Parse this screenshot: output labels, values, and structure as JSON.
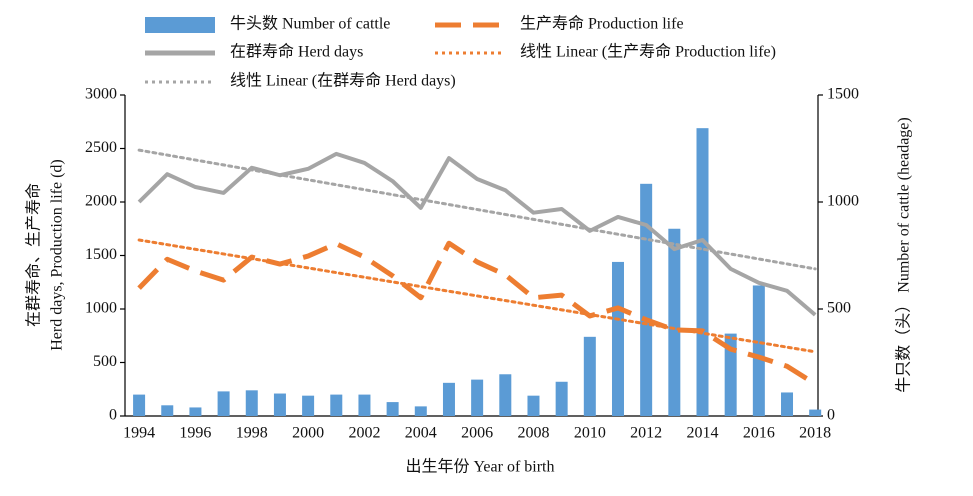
{
  "chart_data": {
    "type": "combo",
    "x_label": "出生年份 Year of birth",
    "y_label": [
      "在群寿命、生产寿命",
      "Herd days, Production life (d)"
    ],
    "y2_label": "牛只数（头） Number of cattle (headage)",
    "x": [
      1994,
      1995,
      1996,
      1997,
      1998,
      1999,
      2000,
      2001,
      2002,
      2003,
      2004,
      2005,
      2006,
      2007,
      2008,
      2009,
      2010,
      2011,
      2012,
      2013,
      2014,
      2015,
      2016,
      2017,
      2018
    ],
    "xlim": [
      1993.5,
      2018.1
    ],
    "xticks": [
      1994,
      1996,
      1998,
      2000,
      2002,
      2004,
      2006,
      2008,
      2010,
      2012,
      2014,
      2016,
      2018
    ],
    "ylim": [
      0,
      3000
    ],
    "yticks": [
      0,
      500,
      1000,
      1500,
      2000,
      2500,
      3000
    ],
    "y2lim": [
      0,
      1500
    ],
    "y2ticks": [
      0,
      500,
      1000,
      1500
    ],
    "series": [
      {
        "name": "牛头数 Number of cattle",
        "type": "bar",
        "axis": "y2",
        "color": "#5b9bd5",
        "values": [
          100,
          50,
          40,
          115,
          120,
          105,
          95,
          100,
          100,
          65,
          45,
          155,
          170,
          195,
          95,
          160,
          370,
          720,
          1085,
          875,
          1345,
          385,
          610,
          110,
          30
        ]
      },
      {
        "name": "生产寿命 Production life",
        "type": "line",
        "style": "dashed",
        "color": "#ed7d31",
        "values": [
          1195,
          1465,
          1355,
          1270,
          1485,
          1420,
          1495,
          1610,
          1485,
          1310,
          1105,
          1615,
          1440,
          1320,
          1105,
          1130,
          935,
          1010,
          900,
          805,
          795,
          625,
          550,
          465,
          300
        ]
      },
      {
        "name": "在群寿命 Herd days",
        "type": "line",
        "style": "solid",
        "color": "#a5a5a5",
        "values": [
          2000,
          2260,
          2140,
          2085,
          2320,
          2250,
          2310,
          2450,
          2365,
          2195,
          1945,
          2410,
          2215,
          2110,
          1900,
          1935,
          1730,
          1860,
          1785,
          1560,
          1645,
          1375,
          1245,
          1170,
          945
        ]
      },
      {
        "name": "线性 Linear (生产寿命 Production life)",
        "type": "trend",
        "style": "dotted",
        "color": "#ed7d31",
        "x": [
          1994,
          2018
        ],
        "values": [
          1645,
          600
        ]
      },
      {
        "name": "线性 Linear (在群寿命 Herd days)",
        "type": "trend",
        "style": "dotted",
        "color": "#a5a5a5",
        "x": [
          1994,
          2018
        ],
        "values": [
          2485,
          1375
        ]
      }
    ]
  }
}
